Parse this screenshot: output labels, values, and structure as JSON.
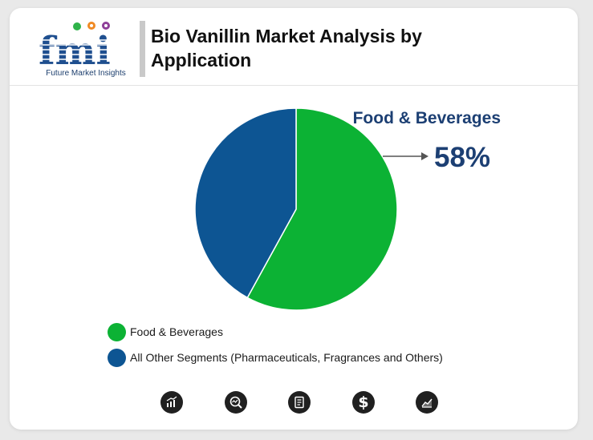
{
  "header": {
    "logo_letters": "fmi",
    "logo_subtitle": "Future Market Insights",
    "title_line1": "Bio Vanillin Market Analysis by",
    "title_line2": "Application"
  },
  "callout": {
    "label": "Food & Beverages",
    "value": "58%"
  },
  "colors": {
    "food": "#0cb234",
    "other": "#0d5593",
    "callout_text": "#1c3f73",
    "icon_bg": "#202020"
  },
  "chart_data": {
    "type": "pie",
    "title": "Bio Vanillin Market Analysis by Application",
    "slices": [
      {
        "label": "Food & Beverages",
        "value": 58,
        "color": "#0cb234"
      },
      {
        "label": "All Other Segments (Pharmaceuticals, Fragrances and Others)",
        "value": 42,
        "color": "#0d5593"
      }
    ],
    "start_angle": "top",
    "direction": "clockwise",
    "legend_position": "bottom-left"
  },
  "legend": [
    {
      "label": "Food & Beverages",
      "color": "#0cb234"
    },
    {
      "label": "All Other Segments (Pharmaceuticals, Fragrances and Others)",
      "color": "#0d5593"
    }
  ],
  "footer_icons": [
    {
      "name": "growth-chart-icon"
    },
    {
      "name": "analysis-magnifier-icon"
    },
    {
      "name": "report-document-icon"
    },
    {
      "name": "dollar-icon"
    },
    {
      "name": "trend-chart-icon"
    }
  ]
}
